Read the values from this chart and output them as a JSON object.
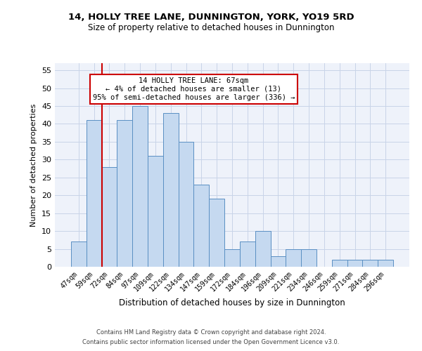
{
  "title1": "14, HOLLY TREE LANE, DUNNINGTON, YORK, YO19 5RD",
  "title2": "Size of property relative to detached houses in Dunnington",
  "xlabel": "Distribution of detached houses by size in Dunnington",
  "ylabel": "Number of detached properties",
  "categories": [
    "47sqm",
    "59sqm",
    "72sqm",
    "84sqm",
    "97sqm",
    "109sqm",
    "122sqm",
    "134sqm",
    "147sqm",
    "159sqm",
    "172sqm",
    "184sqm",
    "196sqm",
    "209sqm",
    "221sqm",
    "234sqm",
    "246sqm",
    "259sqm",
    "271sqm",
    "284sqm",
    "296sqm"
  ],
  "values": [
    7,
    41,
    28,
    41,
    45,
    31,
    43,
    35,
    23,
    19,
    5,
    7,
    10,
    3,
    5,
    5,
    0,
    2,
    2,
    2,
    2
  ],
  "bar_color": "#c5d9f0",
  "bar_edge_color": "#5a8fc3",
  "red_line_x": 1.5,
  "annotation_text": "14 HOLLY TREE LANE: 67sqm\n← 4% of detached houses are smaller (13)\n95% of semi-detached houses are larger (336) →",
  "annotation_box_color": "#ffffff",
  "annotation_box_edge": "#cc0000",
  "red_line_color": "#cc0000",
  "grid_color": "#c8d4e8",
  "background_color": "#eef2fa",
  "ylim": [
    0,
    57
  ],
  "yticks": [
    0,
    5,
    10,
    15,
    20,
    25,
    30,
    35,
    40,
    45,
    50,
    55
  ],
  "footer1": "Contains HM Land Registry data © Crown copyright and database right 2024.",
  "footer2": "Contains public sector information licensed under the Open Government Licence v3.0."
}
